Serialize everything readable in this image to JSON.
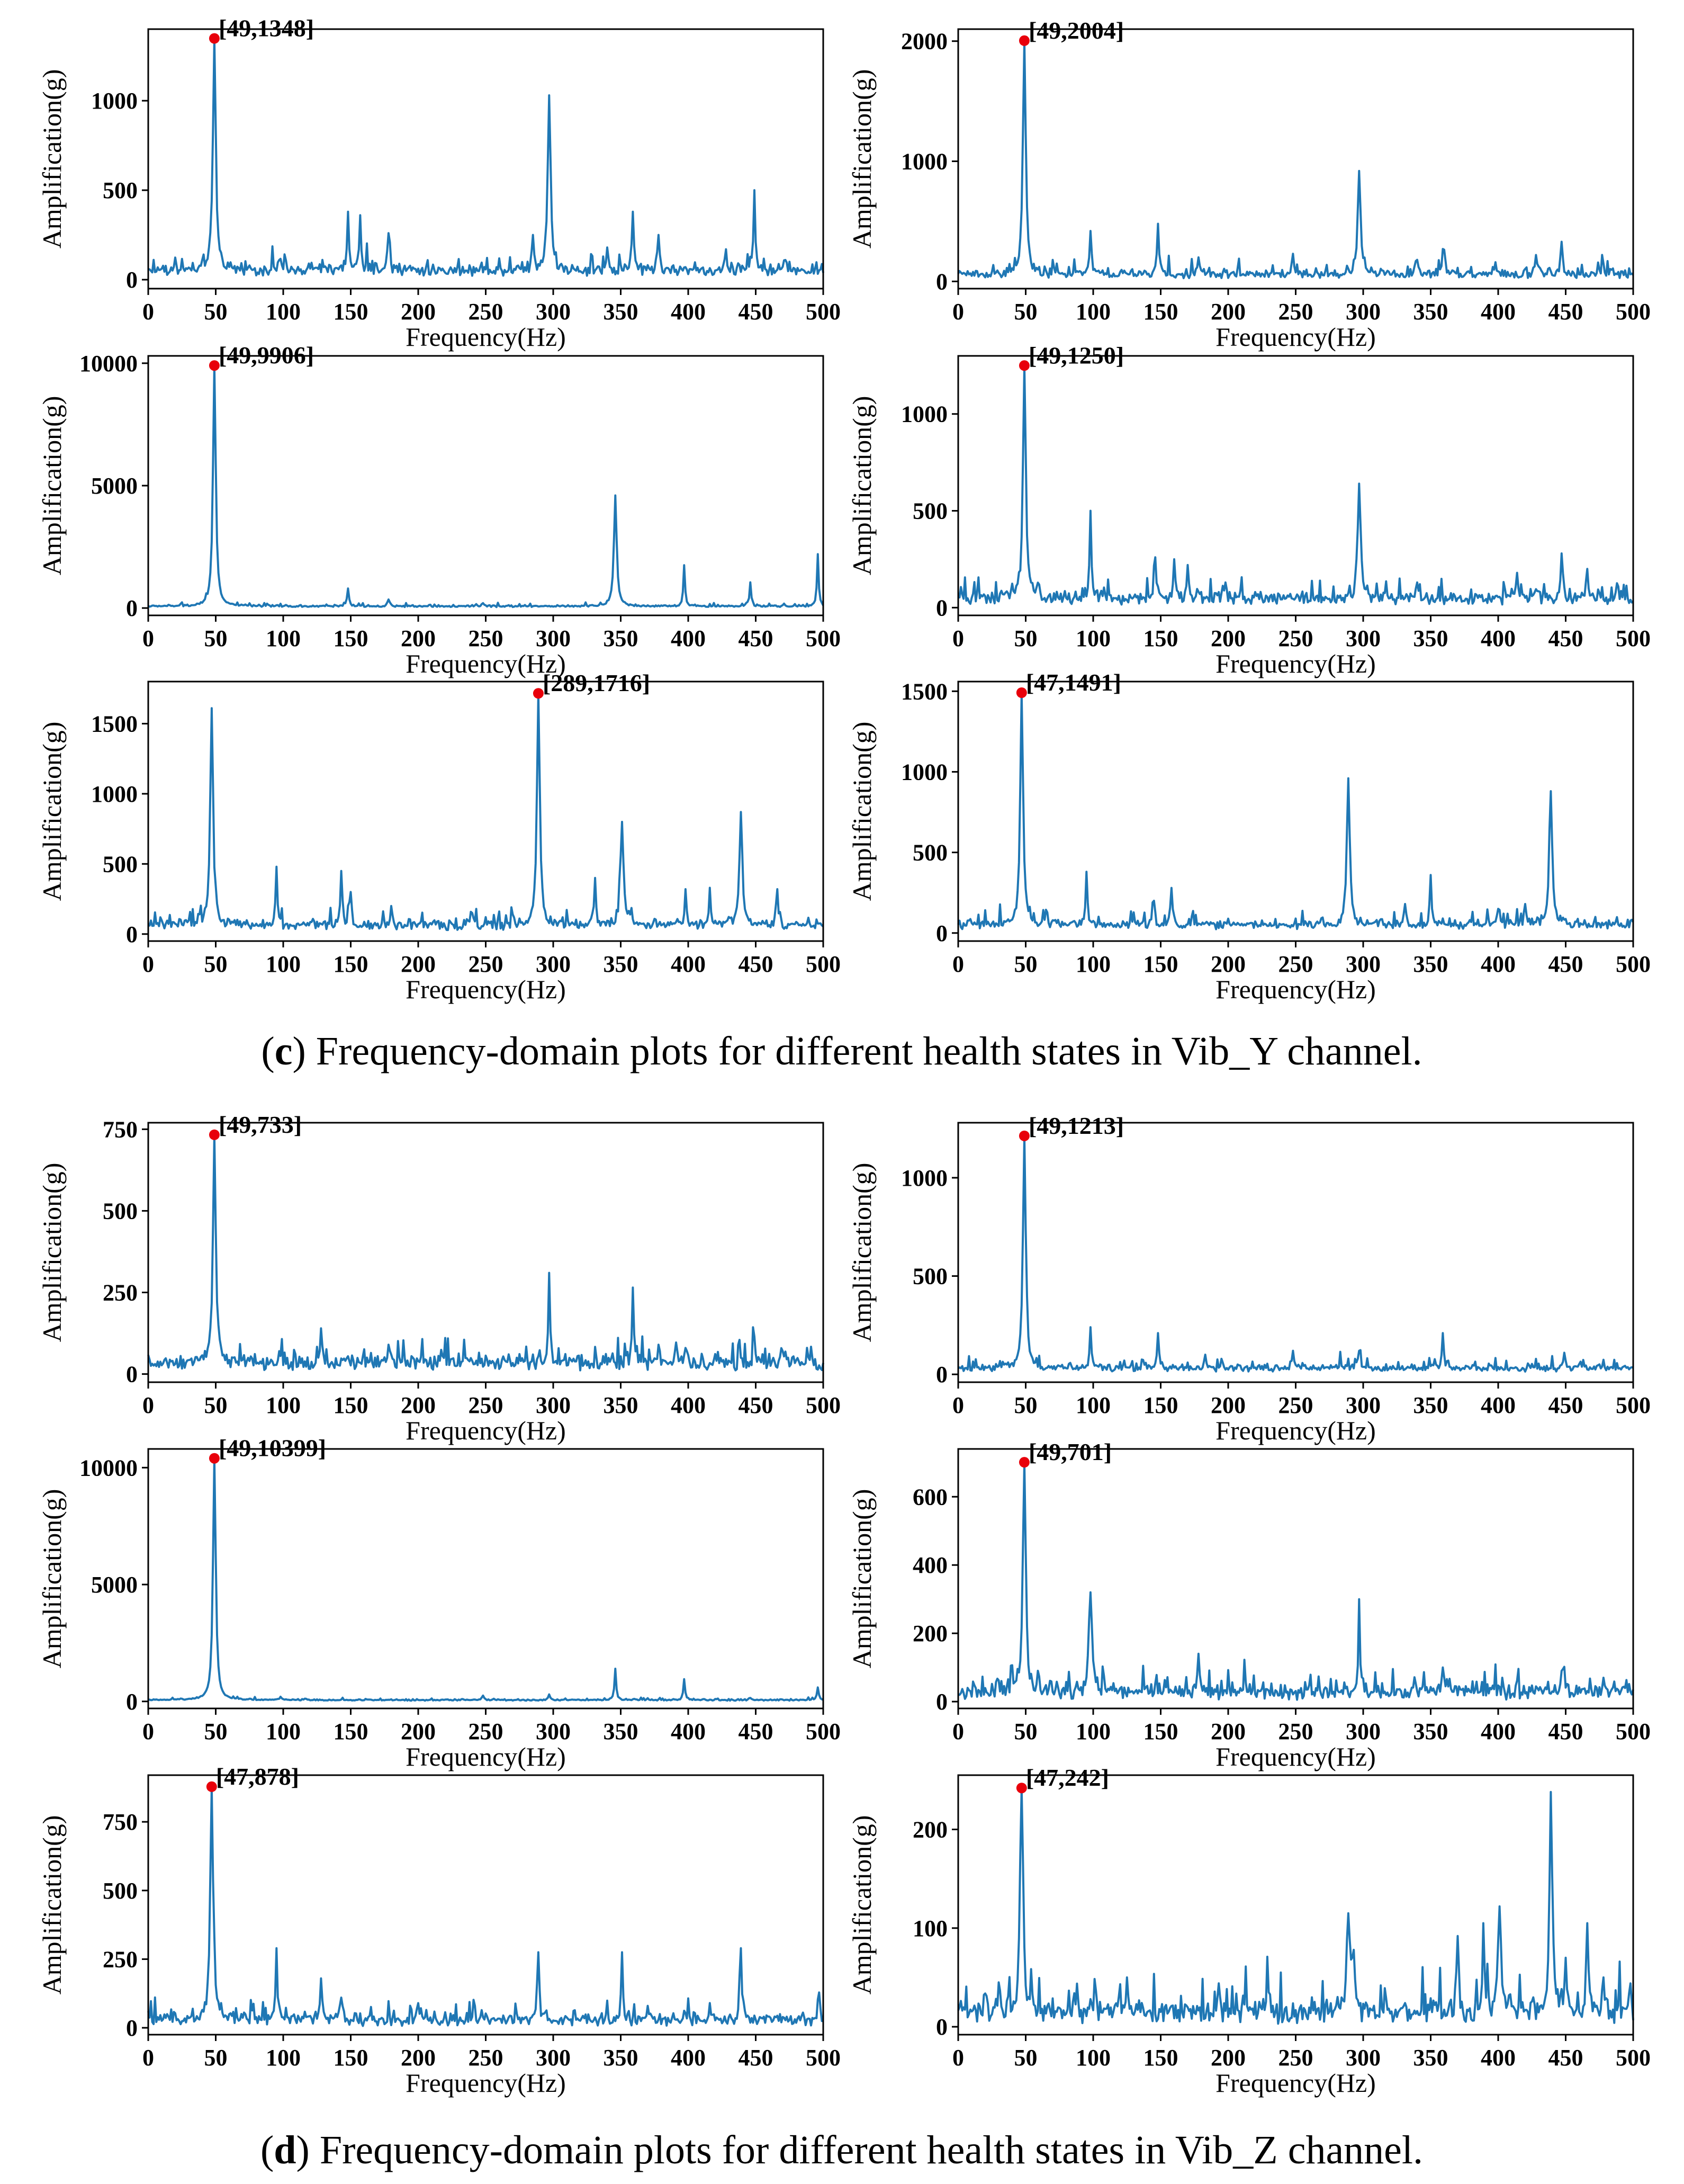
{
  "colors": {
    "series": "#1f77b4",
    "peak_marker": "#e8000b"
  },
  "sections": [
    {
      "caption_prefix": "(",
      "caption_letter": "c",
      "caption_text": ") Frequency-domain plots for different health states in Vib_Y channel.",
      "charts": [
        0,
        1,
        2,
        3,
        4,
        5
      ]
    },
    {
      "caption_prefix": "(",
      "caption_letter": "d",
      "caption_text": ") Frequency-domain plots for different health states in Vib_Z channel.",
      "charts": [
        6,
        7,
        8,
        9,
        10,
        11
      ]
    }
  ],
  "chart_data": [
    {
      "type": "line",
      "channel": "Vib_Y",
      "xlabel": "Frequency(Hz)",
      "ylabel": "Amplification(g)",
      "xlim": [
        0,
        500
      ],
      "ylim": [
        -50,
        1400
      ],
      "xticks": [
        0,
        50,
        100,
        150,
        200,
        250,
        300,
        350,
        400,
        450,
        500
      ],
      "yticks": [
        0,
        500,
        1000
      ],
      "grid": false,
      "peak": [
        49,
        1348
      ],
      "peak_label": "[49,1348]",
      "baseline": 40,
      "noise": 35,
      "peaks": [
        [
          49,
          1348
        ],
        [
          97,
          110
        ],
        [
          148,
          380
        ],
        [
          157,
          360
        ],
        [
          178,
          260
        ],
        [
          285,
          250
        ],
        [
          297,
          1030
        ],
        [
          340,
          180
        ],
        [
          359,
          380
        ],
        [
          378,
          250
        ],
        [
          428,
          170
        ],
        [
          449,
          500
        ],
        [
          472,
          110
        ]
      ]
    },
    {
      "type": "line",
      "channel": "Vib_Y",
      "xlabel": "Frequency(Hz)",
      "ylabel": "Amplification(g)",
      "xlim": [
        0,
        500
      ],
      "ylim": [
        -60,
        2100
      ],
      "xticks": [
        0,
        50,
        100,
        150,
        200,
        250,
        300,
        350,
        400,
        450,
        500
      ],
      "yticks": [
        0,
        1000,
        2000
      ],
      "grid": false,
      "peak": [
        49,
        2004
      ],
      "peak_label": "[49,2004]",
      "baseline": 45,
      "noise": 40,
      "peaks": [
        [
          49,
          2004
        ],
        [
          98,
          420
        ],
        [
          148,
          480
        ],
        [
          178,
          200
        ],
        [
          248,
          230
        ],
        [
          297,
          920
        ],
        [
          340,
          180
        ],
        [
          359,
          270
        ],
        [
          398,
          160
        ],
        [
          428,
          220
        ],
        [
          447,
          330
        ],
        [
          478,
          150
        ]
      ]
    },
    {
      "type": "line",
      "channel": "Vib_Y",
      "xlabel": "Frequency(Hz)",
      "ylabel": "Amplification(g)",
      "xlim": [
        0,
        500
      ],
      "ylim": [
        -300,
        10300
      ],
      "xticks": [
        0,
        50,
        100,
        150,
        200,
        250,
        300,
        350,
        400,
        450,
        500
      ],
      "yticks": [
        0,
        5000,
        10000
      ],
      "grid": false,
      "peak": [
        49,
        9906
      ],
      "peak_label": "[49,9906]",
      "baseline": 60,
      "noise": 40,
      "peaks": [
        [
          49,
          9906
        ],
        [
          148,
          800
        ],
        [
          178,
          350
        ],
        [
          248,
          200
        ],
        [
          346,
          4600
        ],
        [
          397,
          1750
        ],
        [
          446,
          1050
        ],
        [
          496,
          2200
        ]
      ]
    },
    {
      "type": "line",
      "channel": "Vib_Y",
      "xlabel": "Frequency(Hz)",
      "ylabel": "Amplification(g)",
      "xlim": [
        0,
        500
      ],
      "ylim": [
        -40,
        1300
      ],
      "xticks": [
        0,
        50,
        100,
        150,
        200,
        250,
        300,
        350,
        400,
        450,
        500
      ],
      "yticks": [
        0,
        500,
        1000
      ],
      "grid": false,
      "peak": [
        49,
        1250
      ],
      "peak_label": "[49,1250]",
      "baseline": 35,
      "noise": 35,
      "peaks": [
        [
          49,
          1250
        ],
        [
          98,
          500
        ],
        [
          146,
          260
        ],
        [
          160,
          250
        ],
        [
          170,
          220
        ],
        [
          198,
          130
        ],
        [
          297,
          640
        ],
        [
          340,
          130
        ],
        [
          414,
          180
        ],
        [
          447,
          280
        ],
        [
          466,
          200
        ]
      ]
    },
    {
      "type": "line",
      "channel": "Vib_Y",
      "xlabel": "Frequency(Hz)",
      "ylabel": "Amplification(g)",
      "xlim": [
        0,
        500
      ],
      "ylim": [
        -50,
        1800
      ],
      "xticks": [
        0,
        50,
        100,
        150,
        200,
        250,
        300,
        350,
        400,
        450,
        500
      ],
      "yticks": [
        0,
        500,
        1000,
        1500
      ],
      "grid": false,
      "peak": [
        289,
        1716
      ],
      "peak_label": "[289,1716]",
      "baseline": 50,
      "noise": 40,
      "peaks": [
        [
          47,
          1610
        ],
        [
          95,
          480
        ],
        [
          143,
          450
        ],
        [
          150,
          300
        ],
        [
          180,
          200
        ],
        [
          240,
          150
        ],
        [
          289,
          1716
        ],
        [
          331,
          400
        ],
        [
          351,
          800
        ],
        [
          398,
          320
        ],
        [
          416,
          330
        ],
        [
          439,
          870
        ],
        [
          466,
          320
        ]
      ]
    },
    {
      "type": "line",
      "channel": "Vib_Y",
      "xlabel": "Frequency(Hz)",
      "ylabel": "Amplification(g)",
      "xlim": [
        0,
        500
      ],
      "ylim": [
        -50,
        1560
      ],
      "xticks": [
        0,
        50,
        100,
        150,
        200,
        250,
        300,
        350,
        400,
        450,
        500
      ],
      "yticks": [
        0,
        500,
        1000,
        1500
      ],
      "grid": false,
      "peak": [
        47,
        1491
      ],
      "peak_label": "[47,1491]",
      "baseline": 40,
      "noise": 30,
      "peaks": [
        [
          47,
          1491
        ],
        [
          95,
          380
        ],
        [
          145,
          200
        ],
        [
          158,
          280
        ],
        [
          289,
          960
        ],
        [
          331,
          180
        ],
        [
          350,
          360
        ],
        [
          400,
          150
        ],
        [
          420,
          180
        ],
        [
          439,
          880
        ]
      ]
    },
    {
      "type": "line",
      "channel": "Vib_Z",
      "xlabel": "Frequency(Hz)",
      "ylabel": "Amplification(g)",
      "xlim": [
        0,
        500
      ],
      "ylim": [
        -25,
        770
      ],
      "xticks": [
        0,
        50,
        100,
        150,
        200,
        250,
        300,
        350,
        400,
        450,
        500
      ],
      "yticks": [
        0,
        250,
        500,
        750
      ],
      "grid": false,
      "peak": [
        49,
        733
      ],
      "peak_label": "[49,733]",
      "baseline": 25,
      "noise": 25,
      "peaks": [
        [
          49,
          733
        ],
        [
          97,
          70
        ],
        [
          128,
          140
        ],
        [
          178,
          90
        ],
        [
          297,
          310
        ],
        [
          359,
          265
        ],
        [
          378,
          90
        ],
        [
          398,
          80
        ],
        [
          449,
          115
        ],
        [
          470,
          70
        ]
      ]
    },
    {
      "type": "line",
      "channel": "Vib_Z",
      "xlabel": "Frequency(Hz)",
      "ylabel": "Amplification(g)",
      "xlim": [
        0,
        500
      ],
      "ylim": [
        -40,
        1280
      ],
      "xticks": [
        0,
        50,
        100,
        150,
        200,
        250,
        300,
        350,
        400,
        450,
        500
      ],
      "yticks": [
        0,
        500,
        1000
      ],
      "grid": false,
      "peak": [
        49,
        1213
      ],
      "peak_label": "[49,1213]",
      "baseline": 25,
      "noise": 20,
      "peaks": [
        [
          49,
          1213
        ],
        [
          98,
          240
        ],
        [
          148,
          210
        ],
        [
          183,
          100
        ],
        [
          248,
          120
        ],
        [
          297,
          120
        ],
        [
          359,
          210
        ],
        [
          449,
          110
        ]
      ]
    },
    {
      "type": "line",
      "channel": "Vib_Z",
      "xlabel": "Frequency(Hz)",
      "ylabel": "Amplification(g)",
      "xlim": [
        0,
        500
      ],
      "ylim": [
        -300,
        10800
      ],
      "xticks": [
        0,
        50,
        100,
        150,
        200,
        250,
        300,
        350,
        400,
        450,
        500
      ],
      "yticks": [
        0,
        5000,
        10000
      ],
      "grid": false,
      "peak": [
        49,
        10399
      ],
      "peak_label": "[49,10399]",
      "baseline": 50,
      "noise": 30,
      "peaks": [
        [
          49,
          10399
        ],
        [
          98,
          200
        ],
        [
          248,
          250
        ],
        [
          297,
          300
        ],
        [
          346,
          1400
        ],
        [
          397,
          950
        ],
        [
          446,
          150
        ],
        [
          496,
          600
        ]
      ]
    },
    {
      "type": "line",
      "channel": "Vib_Z",
      "xlabel": "Frequency(Hz)",
      "ylabel": "Amplification(g)",
      "xlim": [
        0,
        500
      ],
      "ylim": [
        -20,
        740
      ],
      "xticks": [
        0,
        50,
        100,
        150,
        200,
        250,
        300,
        350,
        400,
        450,
        500
      ],
      "yticks": [
        0,
        200,
        400,
        600
      ],
      "grid": false,
      "peak": [
        49,
        701
      ],
      "peak_label": "[49,701]",
      "baseline": 20,
      "noise": 25,
      "peaks": [
        [
          49,
          701
        ],
        [
          98,
          320
        ],
        [
          178,
          140
        ],
        [
          297,
          300
        ],
        [
          359,
          100
        ],
        [
          447,
          90
        ],
        [
          478,
          70
        ]
      ]
    },
    {
      "type": "line",
      "channel": "Vib_Z",
      "xlabel": "Frequency(Hz)",
      "ylabel": "Amplification(g)",
      "xlim": [
        0,
        500
      ],
      "ylim": [
        -25,
        920
      ],
      "xticks": [
        0,
        50,
        100,
        150,
        200,
        250,
        300,
        350,
        400,
        450,
        500
      ],
      "yticks": [
        0,
        250,
        500,
        750
      ],
      "grid": false,
      "peak": [
        47,
        878
      ],
      "peak_label": "[47,878]",
      "baseline": 20,
      "noise": 25,
      "peaks": [
        [
          47,
          878
        ],
        [
          95,
          290
        ],
        [
          128,
          180
        ],
        [
          143,
          110
        ],
        [
          200,
          90
        ],
        [
          289,
          275
        ],
        [
          351,
          275
        ],
        [
          370,
          80
        ],
        [
          416,
          90
        ],
        [
          439,
          290
        ]
      ]
    },
    {
      "type": "line",
      "channel": "Vib_Z",
      "xlabel": "Frequency(Hz)",
      "ylabel": "Amplification(g)",
      "xlim": [
        0,
        500
      ],
      "ylim": [
        -8,
        255
      ],
      "xticks": [
        0,
        50,
        100,
        150,
        200,
        250,
        300,
        350,
        400,
        450,
        500
      ],
      "yticks": [
        0,
        100,
        200
      ],
      "grid": false,
      "peak": [
        47,
        242
      ],
      "peak_label": "[47,242]",
      "baseline": 10,
      "noise": 14,
      "peaks": [
        [
          30,
          45
        ],
        [
          47,
          242
        ],
        [
          98,
          28
        ],
        [
          125,
          50
        ],
        [
          193,
          44
        ],
        [
          230,
          35
        ],
        [
          289,
          115
        ],
        [
          293,
          78
        ],
        [
          370,
          92
        ],
        [
          389,
          105
        ],
        [
          401,
          122
        ],
        [
          439,
          238
        ],
        [
          450,
          70
        ],
        [
          466,
          105
        ],
        [
          478,
          50
        ]
      ]
    }
  ]
}
